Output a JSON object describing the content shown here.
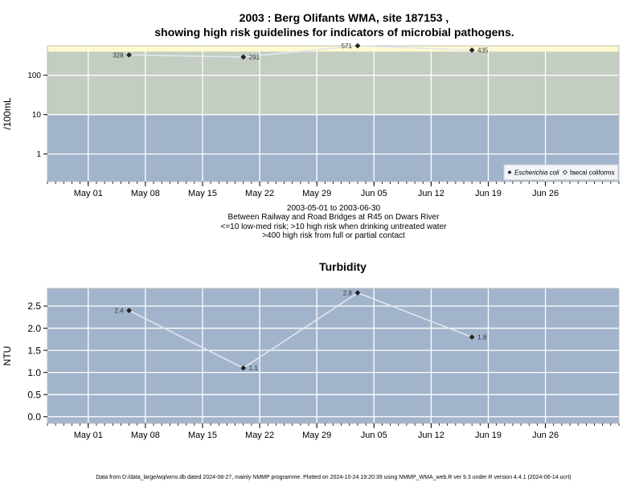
{
  "title_line1": "2003 : Berg Olifants WMA, site 187153 ,",
  "title_line2": "showing high risk guidelines for indicators of microbial pathogens.",
  "caption": [
    "2003-05-01 to 2003-06-30",
    "Between Railway and Road Bridges at R45 on Dwars River",
    "<=10 low-med risk; >10 high risk when drinking untreated water",
    ">400 high risk from full or partial contact"
  ],
  "footer": "Data from D:/data_large/wq/wms.db dated 2024-08-27, mainly NMMP programme. Plotted on 2024-10-24 19:20:39 using NMMP_WMA_web.R ver 9.3 under R version 4.4.1 (2024-06-14 ucrt)",
  "colors": {
    "band_low": "#a2b4cc",
    "band_mid": "#c3cdc1",
    "band_high": "#fffacd",
    "grid": "#ffffff",
    "series_line": "#e2e6ee",
    "marker": "#222222"
  },
  "chart_data": [
    {
      "type": "line",
      "title": "",
      "ylabel": "/100mL",
      "yscale": "log",
      "ylim": [
        0.2,
        560
      ],
      "xlim": [
        "2003-04-26",
        "2003-07-05"
      ],
      "x_ticks": [
        "May 01",
        "May 08",
        "May 15",
        "May 22",
        "May 29",
        "Jun 05",
        "Jun 12",
        "Jun 19",
        "Jun 26"
      ],
      "y_ticks": [
        "1",
        "10",
        "100"
      ],
      "bands": [
        {
          "from": 0,
          "to": 10,
          "color": "#a2b4cc"
        },
        {
          "from": 10,
          "to": 400,
          "color": "#c3cdc1"
        },
        {
          "from": 400,
          "to": 560,
          "color": "#fffacd"
        }
      ],
      "legend_position": "bottom-right",
      "legend": [
        "Escherichia coli",
        "faecal coliforms"
      ],
      "series": [
        {
          "name": "Escherichia coli",
          "x": [
            "2003-05-06",
            "2003-05-20",
            "2003-06-03",
            "2003-06-17"
          ],
          "values": [
            328,
            291,
            571,
            435
          ],
          "labels": [
            "328",
            "291",
            "571",
            "435"
          ]
        }
      ]
    },
    {
      "type": "line",
      "title": "Turbidity",
      "ylabel": "NTU",
      "ylim": [
        -0.15,
        2.9
      ],
      "xlim": [
        "2003-04-26",
        "2003-07-05"
      ],
      "x_ticks": [
        "May 01",
        "May 08",
        "May 15",
        "May 22",
        "May 29",
        "Jun 05",
        "Jun 12",
        "Jun 19",
        "Jun 26"
      ],
      "y_ticks": [
        "0.0",
        "0.5",
        "1.0",
        "1.5",
        "2.0",
        "2.5"
      ],
      "series": [
        {
          "x": [
            "2003-05-06",
            "2003-05-20",
            "2003-06-03",
            "2003-06-17"
          ],
          "values": [
            2.4,
            1.1,
            2.8,
            1.8
          ],
          "labels": [
            "2.4",
            "1.1",
            "2.8",
            "1.8"
          ]
        }
      ]
    }
  ]
}
